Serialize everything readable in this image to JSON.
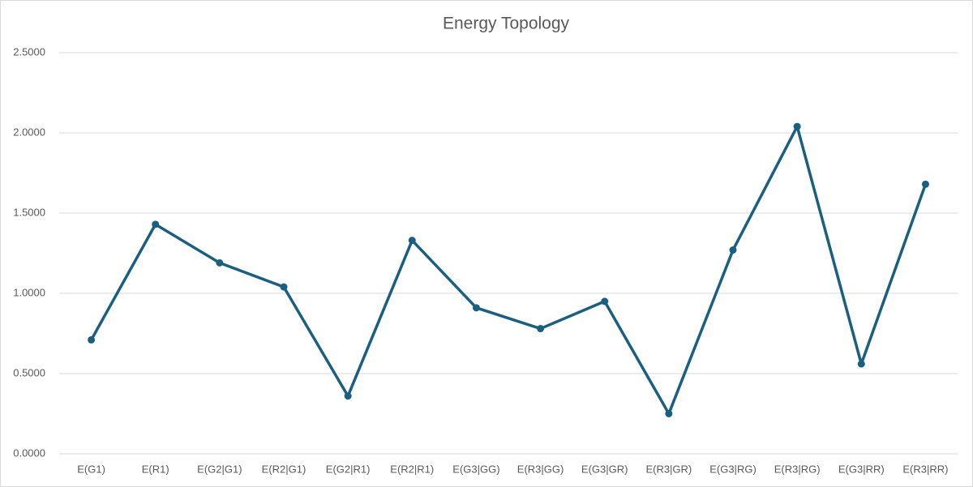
{
  "chart_data": {
    "type": "line",
    "title": "Energy Topology",
    "categories": [
      "E(G1)",
      "E(R1)",
      "E(G2|G1)",
      "E(R2|G1)",
      "E(G2|R1)",
      "E(R2|R1)",
      "E(G3|GG)",
      "E(R3|GG)",
      "E(G3|GR)",
      "E(R3|GR)",
      "E(G3|RG)",
      "E(R3|RG)",
      "E(G3|RR)",
      "E(R3|RR)"
    ],
    "values": [
      0.71,
      1.43,
      1.19,
      1.04,
      0.36,
      1.33,
      0.91,
      0.78,
      0.95,
      0.25,
      1.27,
      2.04,
      0.56,
      1.68
    ],
    "color": "#1b5f80",
    "ylim": [
      0,
      2.5
    ],
    "yticks": [
      {
        "value": 0,
        "label": "0.0000"
      },
      {
        "value": 0.5,
        "label": "0.5000"
      },
      {
        "value": 1,
        "label": "1.0000"
      },
      {
        "value": 1.5,
        "label": "1.5000"
      },
      {
        "value": 2,
        "label": "2.0000"
      },
      {
        "value": 2.5,
        "label": "2.5000"
      }
    ],
    "grid": true
  }
}
